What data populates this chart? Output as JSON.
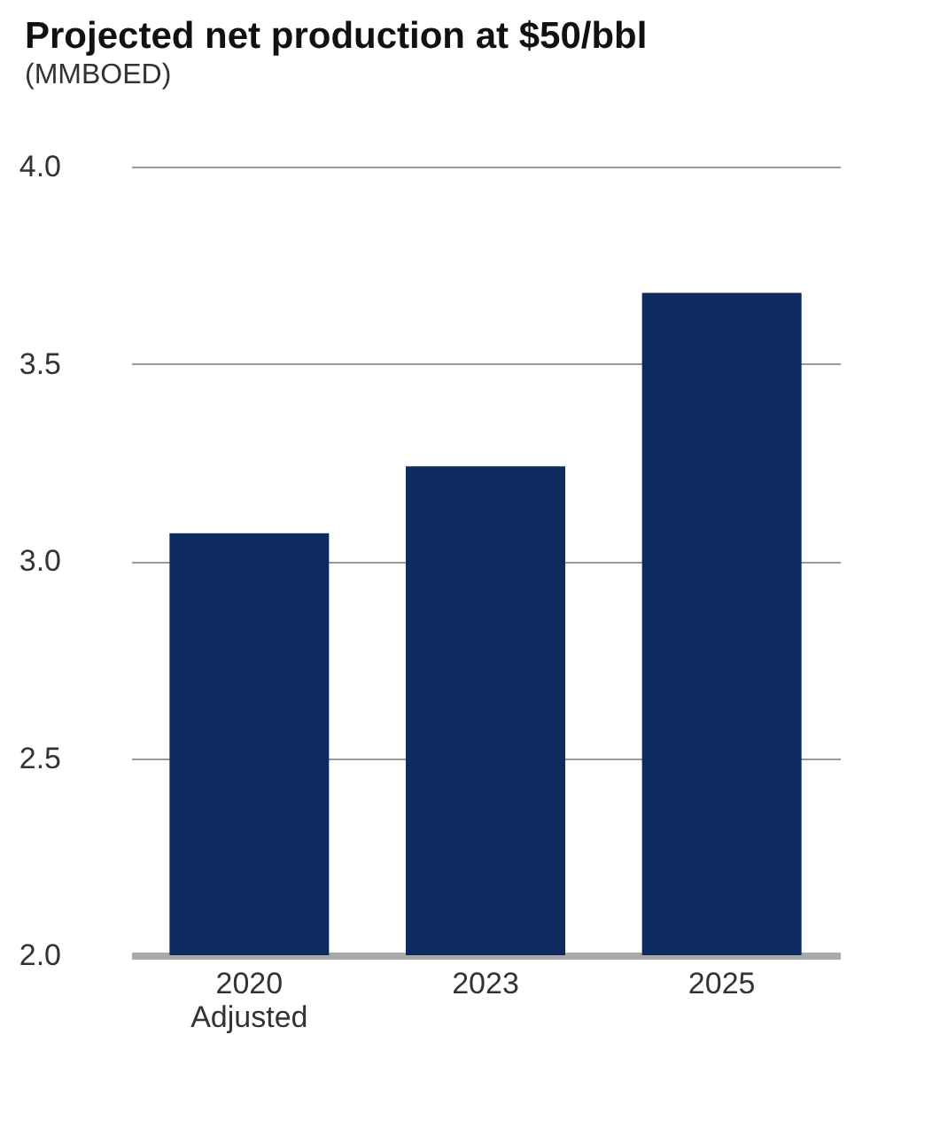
{
  "chart_data": {
    "type": "bar",
    "title": "Projected net production at $50/bbl",
    "subtitle": "(MMBOED)",
    "categories": [
      "2020\nAdjusted",
      "2023",
      "2025"
    ],
    "series": [
      {
        "color": "#0f2a5f",
        "values": [
          3.07,
          3.24,
          3.68
        ]
      }
    ],
    "ylim": [
      2.0,
      4.0
    ],
    "yticks": [
      {
        "value": 2.0,
        "label": "2.0"
      },
      {
        "value": 2.5,
        "label": "2.5"
      },
      {
        "value": 3.0,
        "label": "3.0"
      },
      {
        "value": 3.5,
        "label": "3.5"
      },
      {
        "value": 4.0,
        "label": "4.0"
      }
    ],
    "grid": "y"
  }
}
